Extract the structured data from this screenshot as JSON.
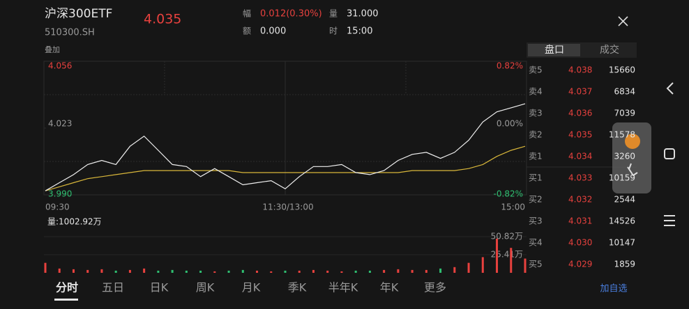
{
  "header": {
    "name": "沪深300ETF",
    "code": "510300.SH",
    "price": "4.035",
    "fields": [
      {
        "label": "幅",
        "value": "0.012(0.30%)"
      },
      {
        "label": "量",
        "value": "31.000"
      },
      {
        "label": "额",
        "value": "0.000"
      },
      {
        "label": "时",
        "value": "15:00"
      }
    ],
    "overlay": "叠加"
  },
  "chart": {
    "type": "line",
    "yticks": [
      4.056,
      4.023,
      {
        "value": 3.99,
        "label": "3.990"
      }
    ],
    "pct_labels": [
      "0.82%",
      "0.00%",
      "-0.82%"
    ],
    "time_labels": [
      "09:30",
      "11:30/13:00",
      "15:00"
    ],
    "price": [
      3.992,
      3.996,
      4.0,
      4.005,
      4.007,
      4.005,
      4.014,
      4.019,
      4.012,
      4.005,
      4.004,
      3.999,
      4.003,
      3.999,
      3.995,
      3.996,
      3.997,
      3.993,
      3.999,
      4.004,
      4.004,
      4.005,
      4.001,
      4.0,
      4.002,
      4.007,
      4.01,
      4.011,
      4.008,
      4.011,
      4.017,
      4.026,
      4.031,
      4.033,
      4.035
    ],
    "average": [
      3.992,
      3.994,
      3.996,
      3.998,
      3.999,
      4.0,
      4.001,
      4.002,
      4.002,
      4.002,
      4.002,
      4.002,
      4.002,
      4.002,
      4.001,
      4.001,
      4.001,
      4.001,
      4.001,
      4.001,
      4.001,
      4.001,
      4.001,
      4.001,
      4.001,
      4.001,
      4.002,
      4.002,
      4.002,
      4.002,
      4.003,
      4.005,
      4.009,
      4.012,
      4.014
    ],
    "volume_title": "量:1002.92万",
    "volume_ticks": [
      {
        "value": 50.82,
        "label": "50.82万"
      },
      {
        "value": 25.41,
        "label": "25.41万"
      }
    ],
    "volume": [
      14,
      6,
      5,
      4,
      5,
      3,
      4,
      6,
      3,
      4,
      3,
      3,
      2,
      3,
      4,
      3,
      2,
      3,
      3,
      4,
      3,
      2,
      3,
      3,
      4,
      5,
      4,
      4,
      6,
      8,
      14,
      22,
      48,
      35,
      20
    ]
  },
  "order_book": {
    "tabs": [
      "盘口",
      "成交"
    ],
    "rows": [
      {
        "label": "卖5",
        "price": "4.038",
        "volume": "15660"
      },
      {
        "label": "卖4",
        "price": "4.037",
        "volume": "6834"
      },
      {
        "label": "卖3",
        "price": "4.036",
        "volume": "7039"
      },
      {
        "label": "卖2",
        "price": "4.035",
        "volume": "11578"
      },
      {
        "label": "卖1",
        "price": "4.034",
        "volume": "3260"
      },
      {
        "label": "买1",
        "price": "4.033",
        "volume": "10159"
      },
      {
        "label": "买2",
        "price": "4.032",
        "volume": "2544"
      },
      {
        "label": "买3",
        "price": "4.031",
        "volume": "14526"
      },
      {
        "label": "买4",
        "price": "4.030",
        "volume": "10147"
      },
      {
        "label": "买5",
        "price": "4.029",
        "volume": "1859"
      }
    ]
  },
  "periods": [
    "分时",
    "五日",
    "日K",
    "周K",
    "月K",
    "季K",
    "半年K",
    "年K",
    "更多"
  ],
  "add_watch": "加自选"
}
